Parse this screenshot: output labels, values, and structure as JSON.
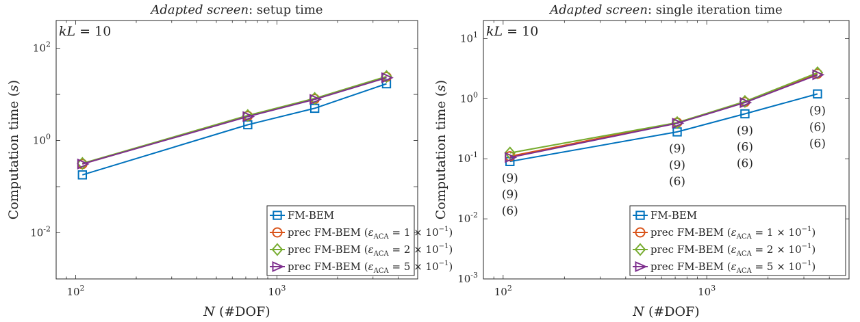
{
  "figure": [
    {
      "title": {
        "italic": "Adapted screen",
        "rest": ": setup time"
      },
      "ylabel": "Computation time (s)",
      "xlabel": "N (#DOF)",
      "note": "kL = 10",
      "chart_data": {
        "type": "line",
        "xscale": "log",
        "yscale": "log",
        "xlim": [
          80,
          5000
        ],
        "ylim": [
          0.001,
          400
        ],
        "xticks": [
          {
            "value": 100,
            "base": "10",
            "exp": "2"
          },
          {
            "value": 1000,
            "base": "10",
            "exp": "3"
          }
        ],
        "yticks": [
          {
            "value": 0.01,
            "base": "10",
            "exp": "-2"
          },
          {
            "value": 1,
            "base": "10",
            "exp": "0"
          },
          {
            "value": 100,
            "base": "10",
            "exp": "2"
          }
        ],
        "legend_position": "bottom-right",
        "series": [
          {
            "name": "FM-BEM",
            "color": "#0072bd",
            "marker": "square",
            "x": [
              108,
              716,
              1540,
              3500
            ],
            "y": [
              0.18,
              2.2,
              5.0,
              17
            ]
          },
          {
            "name": "prec FM-BEM (εACA = 1 × 10−1)",
            "color": "#d95319",
            "marker": "circle",
            "x": [
              108,
              716,
              1540,
              3500
            ],
            "y": [
              0.31,
              3.4,
              8.0,
              24
            ]
          },
          {
            "name": "prec FM-BEM (εACA = 2 × 10−1)",
            "color": "#77ac30",
            "marker": "diamond",
            "x": [
              108,
              716,
              1540,
              3500
            ],
            "y": [
              0.32,
              3.5,
              8.2,
              24.5
            ]
          },
          {
            "name": "prec FM-BEM (εACA = 5 × 10−1)",
            "color": "#7e2f8e",
            "marker": "triangle-right",
            "x": [
              108,
              716,
              1540,
              3500
            ],
            "y": [
              0.31,
              3.3,
              7.8,
              23
            ]
          }
        ],
        "annotations": []
      }
    },
    {
      "title": {
        "italic": "Adapted screen",
        "rest": ": single iteration time"
      },
      "ylabel": "Computation time (s)",
      "xlabel": "N (#DOF)",
      "note": "kL = 10",
      "chart_data": {
        "type": "line",
        "xscale": "log",
        "yscale": "log",
        "xlim": [
          80,
          5000
        ],
        "ylim": [
          0.001,
          20
        ],
        "xticks": [
          {
            "value": 100,
            "base": "10",
            "exp": "2"
          },
          {
            "value": 1000,
            "base": "10",
            "exp": "3"
          }
        ],
        "yticks": [
          {
            "value": 0.001,
            "base": "10",
            "exp": "-3"
          },
          {
            "value": 0.01,
            "base": "10",
            "exp": "-2"
          },
          {
            "value": 0.1,
            "base": "10",
            "exp": "-1"
          },
          {
            "value": 1,
            "base": "10",
            "exp": "0"
          },
          {
            "value": 10,
            "base": "10",
            "exp": "1"
          }
        ],
        "legend_position": "bottom-right",
        "series": [
          {
            "name": "FM-BEM",
            "color": "#0072bd",
            "marker": "square",
            "x": [
              108,
              716,
              1540,
              3500
            ],
            "y": [
              0.09,
              0.28,
              0.56,
              1.2
            ]
          },
          {
            "name": "prec FM-BEM (εACA = 1 × 10−1)",
            "color": "#d95319",
            "marker": "circle",
            "x": [
              108,
              716,
              1540,
              3500
            ],
            "y": [
              0.11,
              0.4,
              0.88,
              2.6
            ]
          },
          {
            "name": "prec FM-BEM (εACA = 2 × 10−1)",
            "color": "#77ac30",
            "marker": "diamond",
            "x": [
              108,
              716,
              1540,
              3500
            ],
            "y": [
              0.125,
              0.4,
              0.9,
              2.7
            ]
          },
          {
            "name": "prec FM-BEM (εACA = 5 × 10−1)",
            "color": "#7e2f8e",
            "marker": "triangle-right",
            "x": [
              108,
              716,
              1540,
              3500
            ],
            "y": [
              0.105,
              0.39,
              0.86,
              2.5
            ]
          }
        ],
        "annotations": [
          {
            "x": 108,
            "labels": [
              {
                "text": "(9)",
                "color": "#d95319"
              },
              {
                "text": "(9)",
                "color": "#77ac30"
              },
              {
                "text": "(6)",
                "color": "#7e2f8e"
              }
            ]
          },
          {
            "x": 716,
            "labels": [
              {
                "text": "(9)",
                "color": "#d95319"
              },
              {
                "text": "(9)",
                "color": "#77ac30"
              },
              {
                "text": "(6)",
                "color": "#7e2f8e"
              }
            ]
          },
          {
            "x": 1540,
            "labels": [
              {
                "text": "(9)",
                "color": "#d95319"
              },
              {
                "text": "(6)",
                "color": "#77ac30"
              },
              {
                "text": "(6)",
                "color": "#7e2f8e"
              }
            ]
          },
          {
            "x": 3500,
            "labels": [
              {
                "text": "(9)",
                "color": "#d95319"
              },
              {
                "text": "(6)",
                "color": "#77ac30"
              },
              {
                "text": "(6)",
                "color": "#7e2f8e"
              }
            ]
          }
        ]
      }
    }
  ]
}
